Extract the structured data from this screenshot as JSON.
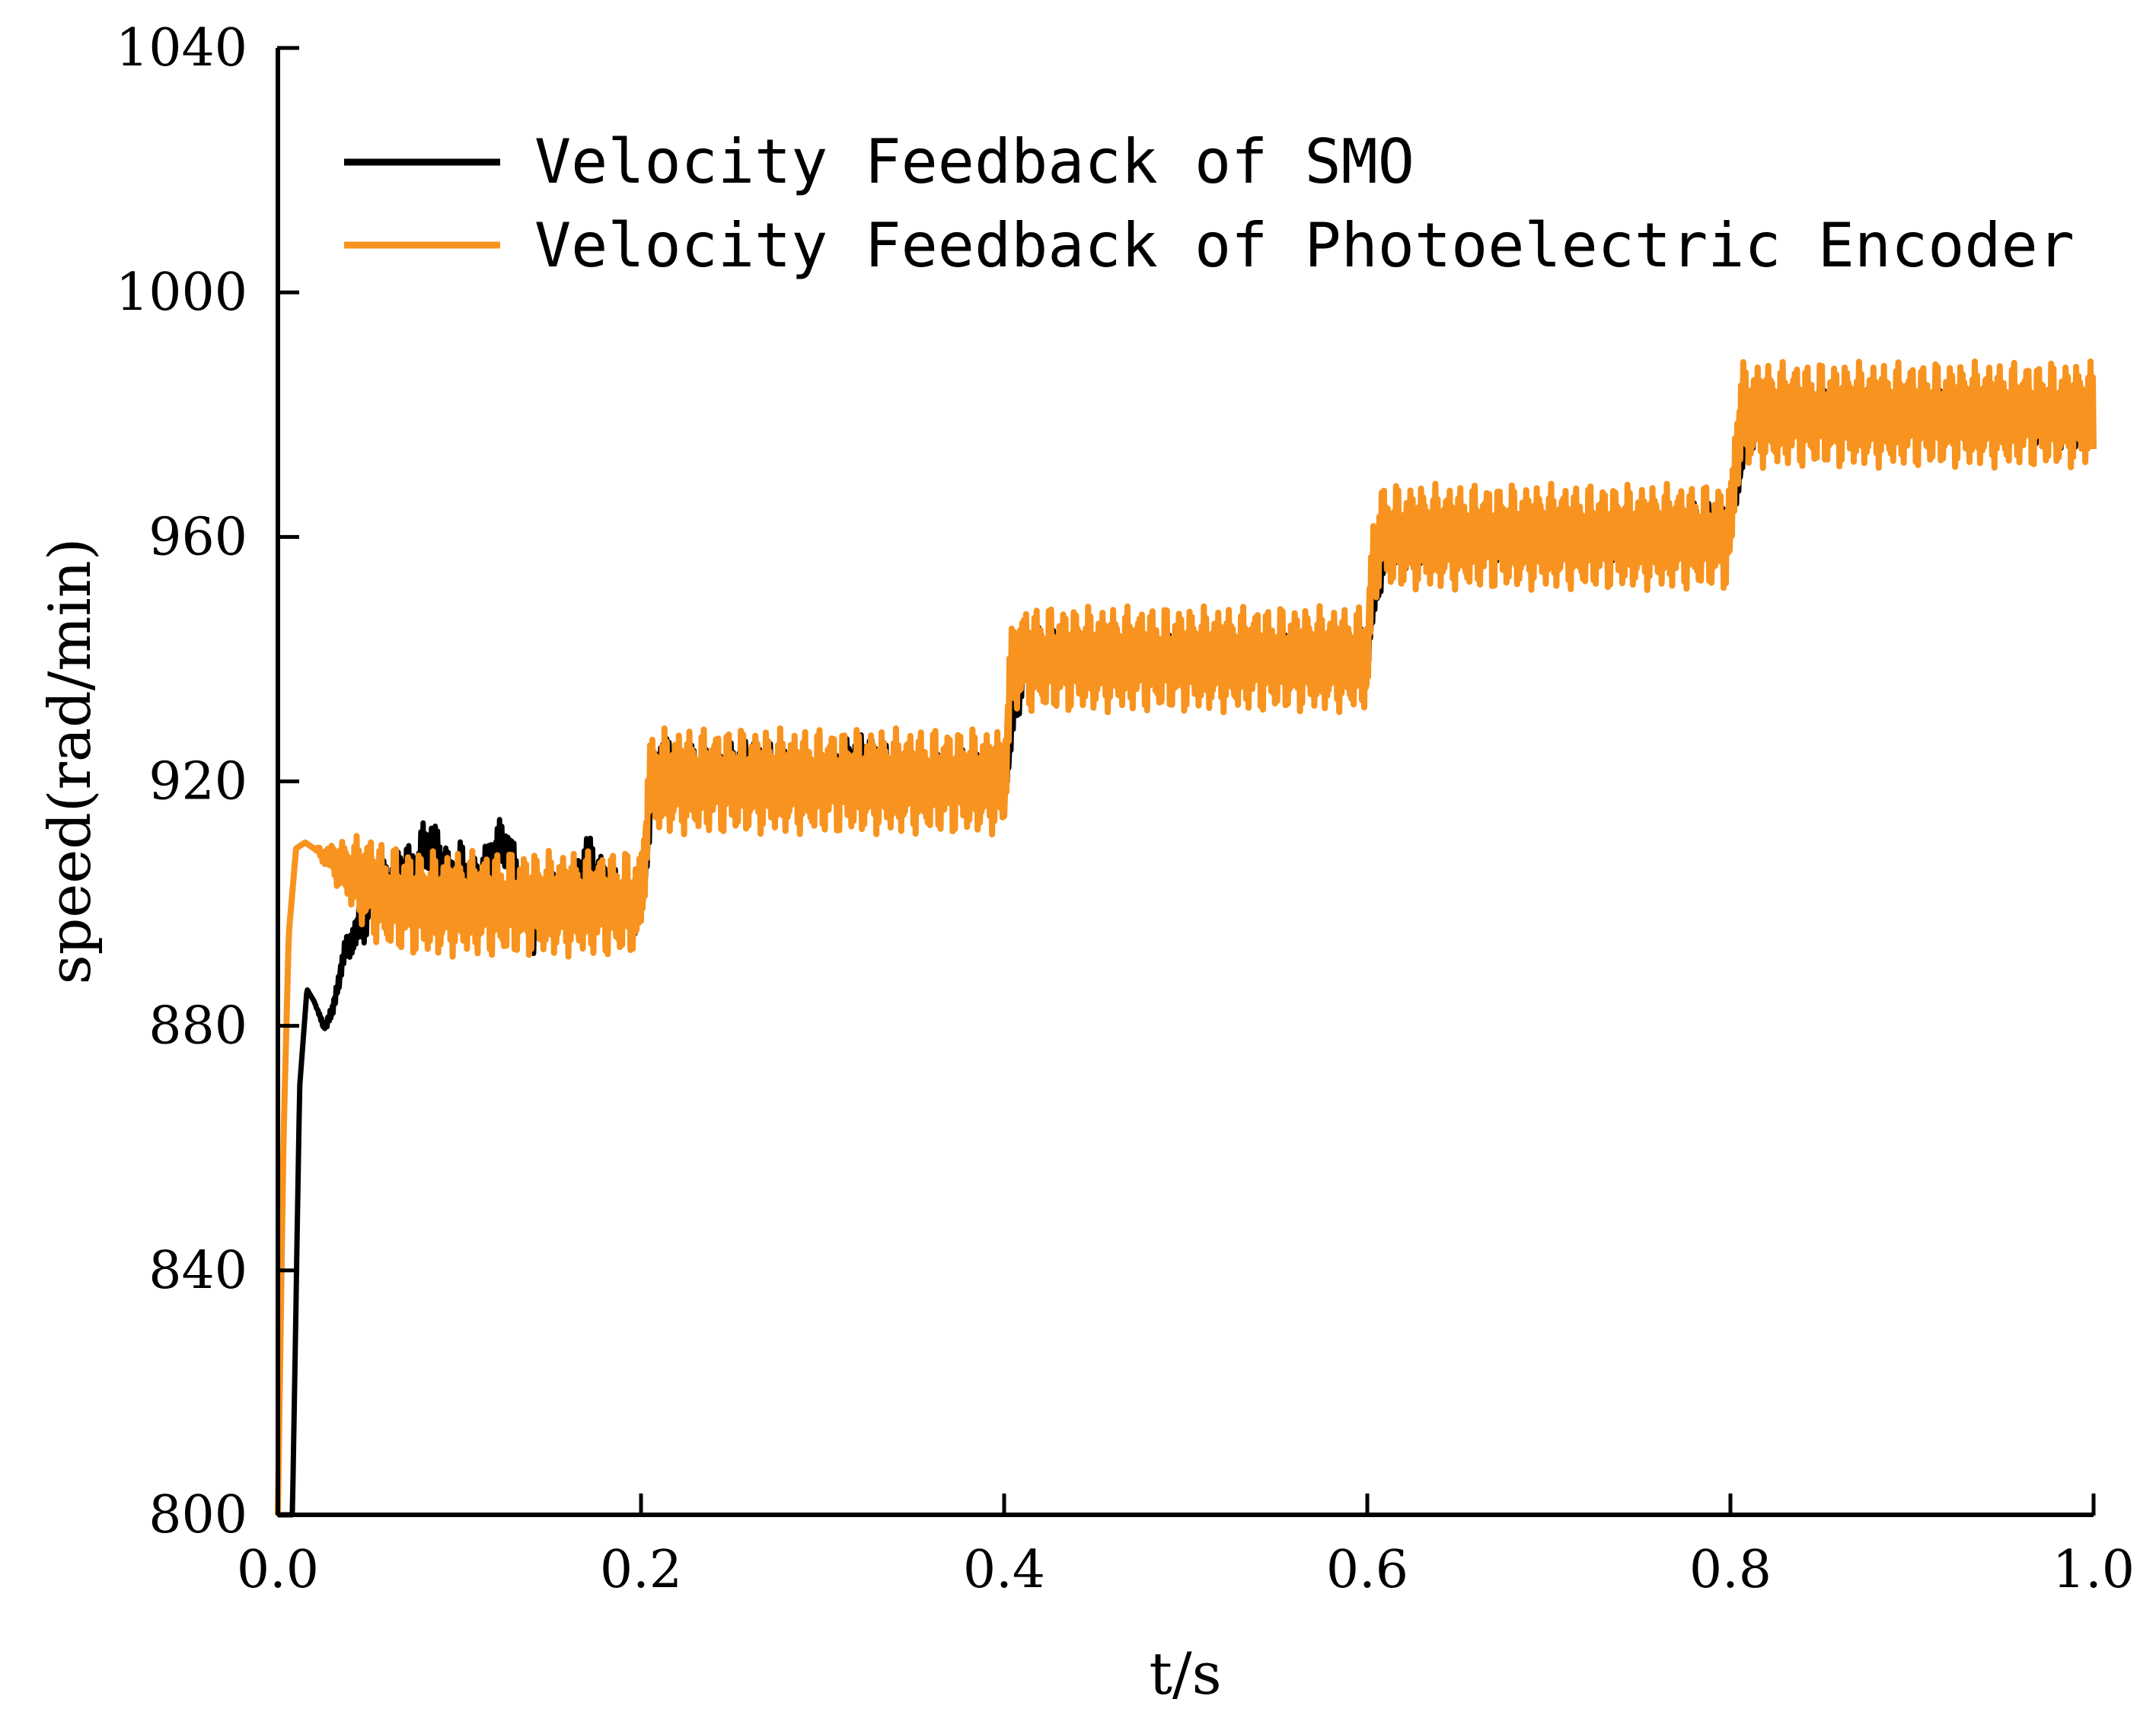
{
  "chart_data": {
    "type": "line",
    "title": "",
    "xlabel": "t/s",
    "ylabel": "speed(rad/min)",
    "xlim": [
      0.0,
      1.0
    ],
    "ylim": [
      800,
      1040
    ],
    "xticks": [
      0.0,
      0.2,
      0.4,
      0.6,
      0.8,
      1.0
    ],
    "xtick_labels": [
      "0.0",
      "0.2",
      "0.4",
      "0.6",
      "0.8",
      "1.0"
    ],
    "yticks": [
      800,
      840,
      880,
      920,
      960,
      1000,
      1040
    ],
    "ytick_labels": [
      "800",
      "840",
      "880",
      "920",
      "960",
      "1000",
      "1040"
    ],
    "grid": false,
    "legend_position": "top-left",
    "series": [
      {
        "name": "Velocity Feedback of SMO",
        "color": "#000000",
        "x": [
          0.0,
          0.008,
          0.012,
          0.016,
          0.02,
          0.025,
          0.03,
          0.035,
          0.04,
          0.045,
          0.05,
          0.055,
          0.06,
          0.065,
          0.07,
          0.075,
          0.08,
          0.085,
          0.09,
          0.095,
          0.1,
          0.11,
          0.12,
          0.125,
          0.13,
          0.14,
          0.15,
          0.16,
          0.17,
          0.175,
          0.18,
          0.19,
          0.2,
          0.205,
          0.21,
          0.22,
          0.24,
          0.26,
          0.3,
          0.32,
          0.35,
          0.38,
          0.4,
          0.405,
          0.41,
          0.42,
          0.45,
          0.5,
          0.55,
          0.6,
          0.605,
          0.61,
          0.62,
          0.65,
          0.7,
          0.75,
          0.8,
          0.805,
          0.81,
          0.82,
          0.85,
          0.9,
          0.95,
          1.0
        ],
        "y": [
          800,
          800,
          870,
          886,
          884,
          880,
          882,
          890,
          894,
          896,
          899,
          902,
          903,
          904,
          906,
          905,
          909,
          910,
          907,
          904,
          906,
          903,
          909,
          910,
          906,
          895,
          902,
          898,
          908,
          905,
          903,
          900,
          899,
          915,
          924,
          922,
          921,
          923,
          920,
          924,
          920,
          921,
          920,
          930,
          938,
          941,
          940,
          940,
          940,
          941,
          952,
          958,
          959,
          960,
          960,
          960,
          962,
          972,
          978,
          980,
          980,
          980,
          980,
          978
        ],
        "ripple_amplitude": 3
      },
      {
        "name": "Velocity Feedback of Photoelectric Encoder",
        "color": "#F7931E",
        "x": [
          0.0,
          0.003,
          0.006,
          0.01,
          0.015,
          0.02,
          0.03,
          0.04,
          0.05,
          0.06,
          0.08,
          0.1,
          0.12,
          0.15,
          0.18,
          0.2,
          0.203,
          0.206,
          0.25,
          0.3,
          0.35,
          0.4,
          0.403,
          0.406,
          0.45,
          0.5,
          0.55,
          0.6,
          0.603,
          0.606,
          0.65,
          0.7,
          0.75,
          0.8,
          0.803,
          0.806,
          0.85,
          0.9,
          0.95,
          1.0
        ],
        "y": [
          800,
          860,
          895,
          909,
          910,
          909,
          907,
          905,
          903,
          901,
          900,
          900,
          900,
          900,
          900,
          900,
          914,
          920,
          920,
          920,
          920,
          920,
          934,
          940,
          940,
          940,
          940,
          940,
          954,
          960,
          960,
          960,
          960,
          960,
          974,
          980,
          980,
          980,
          980,
          980
        ],
        "ripple_amplitude": 6
      }
    ]
  }
}
